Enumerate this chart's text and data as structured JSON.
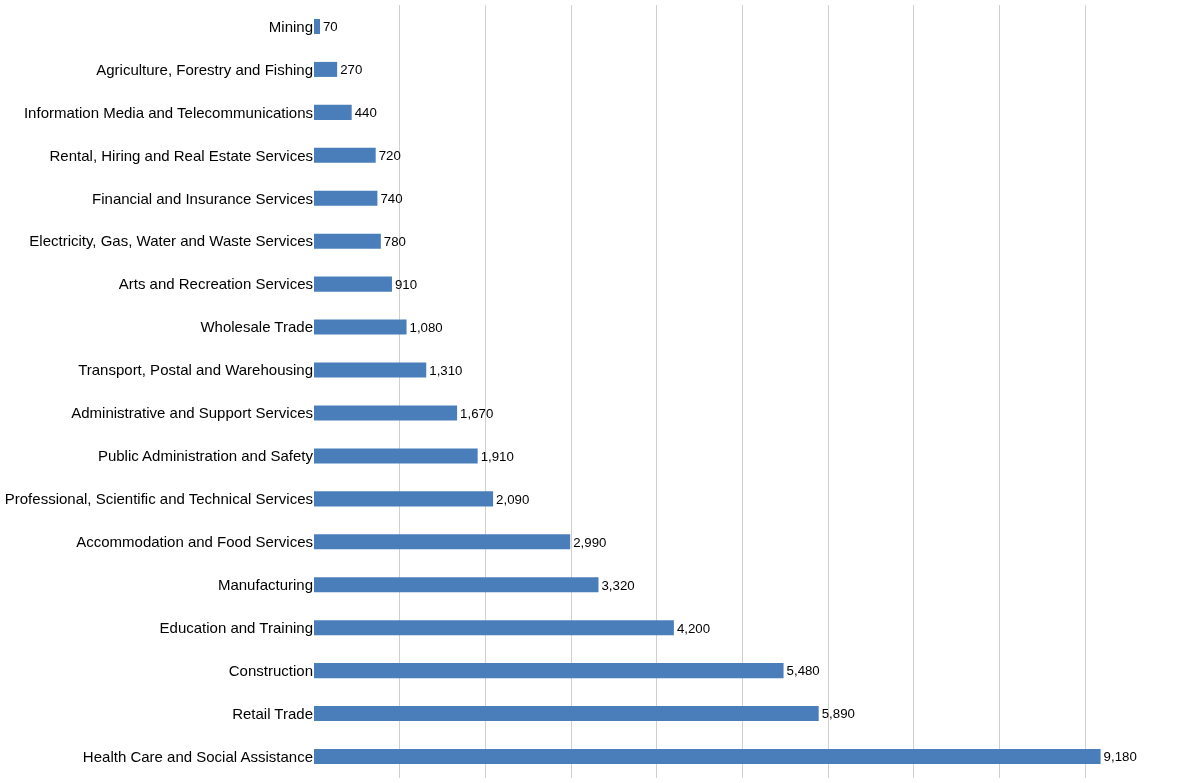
{
  "chart_data": {
    "type": "bar",
    "orientation": "horizontal",
    "categories": [
      "Mining",
      "Agriculture, Forestry and Fishing",
      "Information Media and Telecommunications",
      "Rental, Hiring and Real Estate Services",
      "Financial and Insurance Services",
      "Electricity, Gas, Water and Waste Services",
      "Arts and Recreation Services",
      "Wholesale Trade",
      "Transport, Postal and Warehousing",
      "Administrative and Support Services",
      "Public Administration and Safety",
      "Professional, Scientific and Technical Services",
      "Accommodation and Food Services",
      "Manufacturing",
      "Education and Training",
      "Construction",
      "Retail Trade",
      "Health Care and Social Assistance"
    ],
    "values": [
      70,
      270,
      440,
      720,
      740,
      780,
      910,
      1080,
      1310,
      1670,
      1910,
      2090,
      2990,
      3320,
      4200,
      5480,
      5890,
      9180
    ],
    "value_labels": [
      "70",
      "270",
      "440",
      "720",
      "740",
      "780",
      "910",
      "1,080",
      "1,310",
      "1,670",
      "1,910",
      "2,090",
      "2,990",
      "3,320",
      "4,200",
      "5,480",
      "5,890",
      "9,180"
    ],
    "color": "#4a7ebb",
    "xticks": [
      {
        "value": 1000,
        "label": null
      },
      {
        "value": 2000,
        "label": null
      },
      {
        "value": 3000,
        "label": null
      },
      {
        "value": 4000,
        "label": null
      },
      {
        "value": 5000,
        "label": null
      },
      {
        "value": 6000,
        "label": null
      },
      {
        "value": 7000,
        "label": null
      },
      {
        "value": 8000,
        "label": null
      },
      {
        "value": 9000,
        "label": null
      }
    ],
    "grid": "x",
    "tick_labels": "y"
  }
}
